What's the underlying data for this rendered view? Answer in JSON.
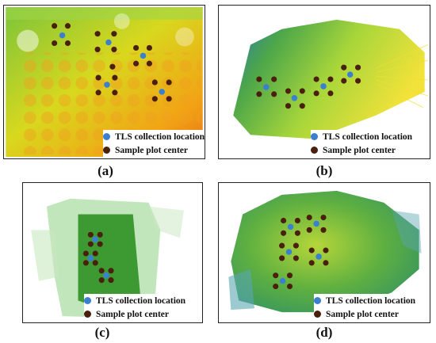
{
  "legend": {
    "tls_label": "TLS collection location",
    "plot_label": "Sample plot center",
    "tls_color": "#3b7fd0",
    "plot_color": "#4a1f0c"
  },
  "panels": [
    {
      "id": "a",
      "caption": "(a)"
    },
    {
      "id": "b",
      "caption": "(b)"
    },
    {
      "id": "c",
      "caption": "(c)"
    },
    {
      "id": "d",
      "caption": "(d)"
    }
  ]
}
